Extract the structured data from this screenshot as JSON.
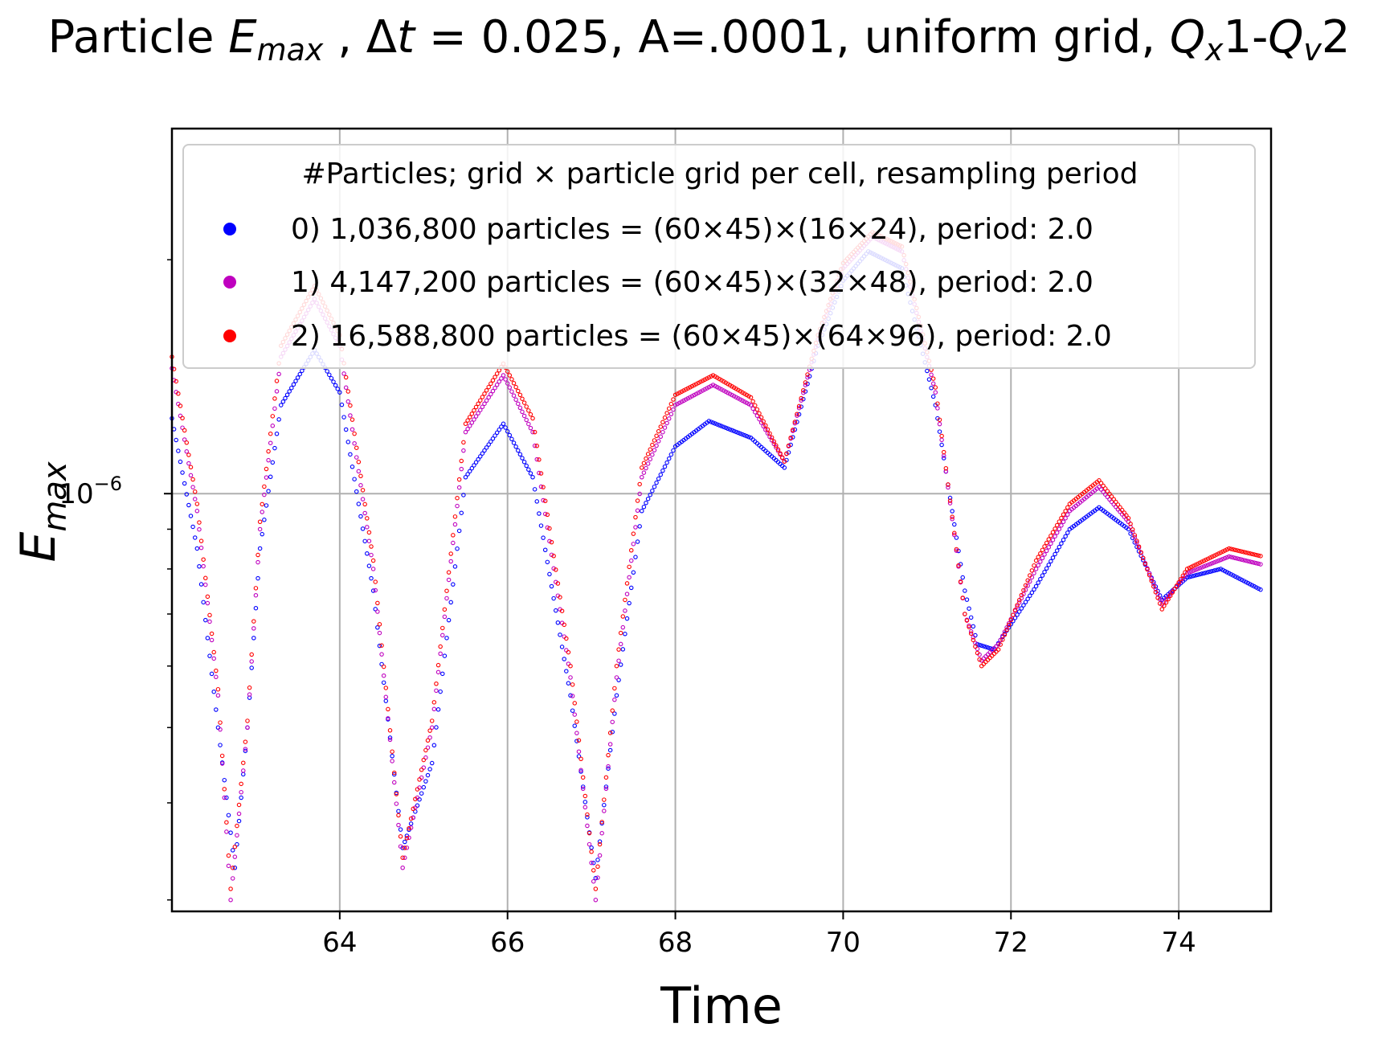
{
  "chart_data": {
    "type": "scatter",
    "title_parts": {
      "prefix": "Particle ",
      "e_symbol": "E",
      "e_sub": "max",
      "dt_text": " , Δ",
      "t_symbol": "t",
      "rest": " = 0.025, A=.0001, uniform grid, ",
      "qx_symbol": "Q",
      "qx_sub": "x",
      "dash": "1-",
      "qv_symbol": "Q",
      "qv_sub": "v",
      "tail": "2"
    },
    "xlabel": "Time",
    "ylabel": "E",
    "ylabel_sub": "max",
    "y_tick_label": {
      "base": "10",
      "exp": "−6",
      "value": 1e-06
    },
    "xlim": [
      62.0,
      75.1
    ],
    "ylim": [
      2.9e-07,
      2.95e-06
    ],
    "xscale": "linear",
    "yscale": "log",
    "xticks": [
      64,
      66,
      68,
      70,
      72,
      74
    ],
    "xtick_labels": [
      "64",
      "66",
      "68",
      "70",
      "72",
      "74"
    ],
    "grid": true,
    "legend": {
      "placement": "top-left",
      "title": "#Particles; grid × particle grid per cell, resampling period",
      "entries": [
        {
          "label": "0) 1,036,800 particles = (60×45)×(16×24), period: 2.0",
          "color": "#0000ff"
        },
        {
          "label": "1) 4,147,200 particles = (60×45)×(32×48), period: 2.0",
          "color": "#bf00bf"
        },
        {
          "label": "2) 16,588,800 particles = (60×45)×(64×96), period: 2.0",
          "color": "#ff0000"
        }
      ]
    },
    "series": [
      {
        "name": "0) 1,036,800 particles",
        "color": "#0000ff",
        "x": [
          62.0,
          62.3,
          62.55,
          62.75,
          62.9,
          63.05,
          63.3,
          63.7,
          64.0,
          64.4,
          64.75,
          65.1,
          65.5,
          65.95,
          66.3,
          66.75,
          67.05,
          67.3,
          67.6,
          68.0,
          68.4,
          68.9,
          69.3,
          69.7,
          70.0,
          70.3,
          70.7,
          71.1,
          71.45,
          71.6,
          71.8,
          72.3,
          72.7,
          73.05,
          73.4,
          73.8,
          74.1,
          74.5,
          75.0
        ],
        "y": [
          1.25e-06,
          8.5e-07,
          5e-07,
          3.3e-07,
          5e-07,
          8.5e-07,
          1.3e-06,
          1.53e-06,
          1.35e-06,
          7.5e-07,
          3.5e-07,
          4.5e-07,
          1.05e-06,
          1.23e-06,
          1.05e-06,
          5.5e-07,
          3.2e-07,
          5.5e-07,
          9.5e-07,
          1.15e-06,
          1.24e-06,
          1.18e-06,
          1.08e-06,
          1.55e-06,
          1.88e-06,
          2.05e-06,
          1.95e-06,
          1.3e-06,
          7.5e-07,
          6.4e-07,
          6.3e-07,
          7.6e-07,
          9e-07,
          9.6e-07,
          9e-07,
          7.3e-07,
          7.8e-07,
          8e-07,
          7.5e-07
        ]
      },
      {
        "name": "1) 4,147,200 particles",
        "color": "#bf00bf",
        "x": [
          62.0,
          62.3,
          62.55,
          62.7,
          62.9,
          63.05,
          63.3,
          63.7,
          64.0,
          64.4,
          64.75,
          65.1,
          65.5,
          65.95,
          66.3,
          66.75,
          67.05,
          67.3,
          67.6,
          68.0,
          68.45,
          68.9,
          69.3,
          69.7,
          70.0,
          70.35,
          70.7,
          71.1,
          71.45,
          71.65,
          71.85,
          72.3,
          72.7,
          73.05,
          73.4,
          73.8,
          74.1,
          74.6,
          75.0
        ],
        "y": [
          1.45e-06,
          9.5e-07,
          5.5e-07,
          3e-07,
          5e-07,
          9e-07,
          1.5e-06,
          1.78e-06,
          1.55e-06,
          8e-07,
          3.3e-07,
          5e-07,
          1.2e-06,
          1.42e-06,
          1.2e-06,
          5.8e-07,
          3e-07,
          5.8e-07,
          1.05e-06,
          1.3e-06,
          1.38e-06,
          1.3e-06,
          1.1e-06,
          1.58e-06,
          1.95e-06,
          2.14e-06,
          2.05e-06,
          1.35e-06,
          7e-07,
          6.1e-07,
          6.4e-07,
          8e-07,
          9.5e-07,
          1.02e-06,
          9.2e-07,
          7.2e-07,
          7.9e-07,
          8.3e-07,
          8.1e-07
        ]
      },
      {
        "name": "2) 16,588,800 particles",
        "color": "#ff0000",
        "x": [
          62.0,
          62.3,
          62.55,
          62.7,
          62.9,
          63.05,
          63.3,
          63.7,
          64.0,
          64.4,
          64.75,
          65.1,
          65.5,
          65.95,
          66.3,
          66.75,
          67.05,
          67.3,
          67.6,
          68.0,
          68.45,
          68.9,
          69.3,
          69.7,
          70.0,
          70.35,
          70.7,
          71.1,
          71.45,
          71.65,
          71.85,
          72.3,
          72.7,
          73.05,
          73.4,
          73.8,
          74.1,
          74.6,
          75.0
        ],
        "y": [
          1.5e-06,
          9.7e-07,
          5.6e-07,
          3.1e-07,
          5.1e-07,
          9.2e-07,
          1.55e-06,
          1.85e-06,
          1.6e-06,
          8.2e-07,
          3.4e-07,
          5.1e-07,
          1.23e-06,
          1.47e-06,
          1.25e-06,
          6e-07,
          3.1e-07,
          6e-07,
          1.08e-06,
          1.34e-06,
          1.42e-06,
          1.33e-06,
          1.1e-06,
          1.6e-06,
          1.98e-06,
          2.17e-06,
          2.08e-06,
          1.37e-06,
          7e-07,
          6e-07,
          6.3e-07,
          8.2e-07,
          9.7e-07,
          1.04e-06,
          9.3e-07,
          7.1e-07,
          8e-07,
          8.5e-07,
          8.3e-07
        ]
      }
    ]
  }
}
